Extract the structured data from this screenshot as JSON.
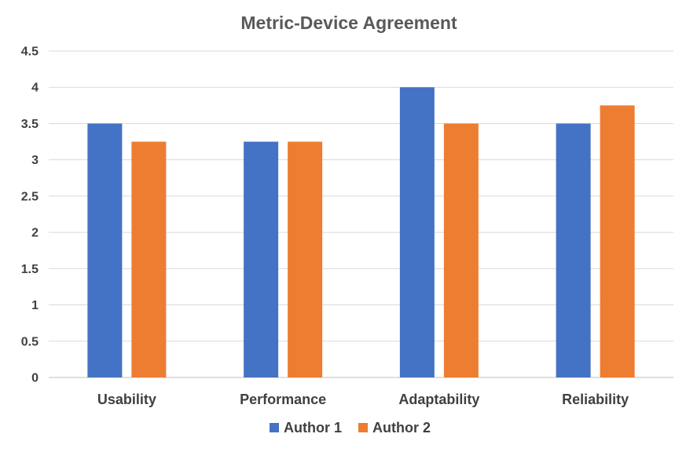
{
  "chart_data": {
    "type": "bar",
    "title": "Metric-Device Agreement",
    "xlabel": "",
    "ylabel": "",
    "categories": [
      "Usability",
      "Performance",
      "Adaptability",
      "Reliability"
    ],
    "series": [
      {
        "name": "Author 1",
        "color": "#4472C4",
        "values": [
          3.5,
          3.25,
          4,
          3.5
        ]
      },
      {
        "name": "Author 2",
        "color": "#ED7D31",
        "values": [
          3.25,
          3.25,
          3.5,
          3.75
        ]
      }
    ],
    "ylim": [
      0,
      4.5
    ],
    "yticks": [
      "0",
      "0.5",
      "1",
      "1.5",
      "2",
      "2.5",
      "3",
      "3.5",
      "4",
      "4.5"
    ],
    "grid": true,
    "legend_position": "bottom"
  }
}
